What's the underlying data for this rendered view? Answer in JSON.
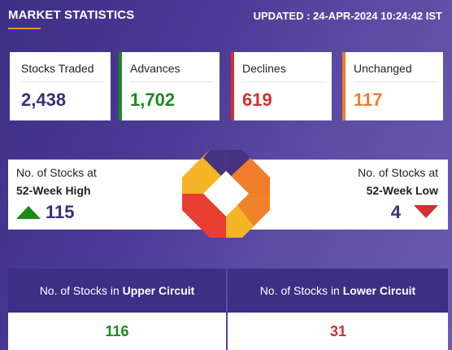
{
  "header": {
    "title": "MARKET STATISTICS",
    "updated": "UPDATED : 24-APR-2024 10:24:42 IST"
  },
  "stats": [
    {
      "label": "Stocks Traded",
      "value": "2,438",
      "color": "#3a2e7a",
      "border": "#ffffff"
    },
    {
      "label": "Advances",
      "value": "1,702",
      "color": "#1b8a1b",
      "border": "#1b8a1b"
    },
    {
      "label": "Declines",
      "value": "619",
      "color": "#d32f2f",
      "border": "#d32f2f"
    },
    {
      "label": "Unchanged",
      "value": "117",
      "color": "#ef7d2b",
      "border": "#ef7d2b"
    }
  ],
  "week52": {
    "high": {
      "line1": "No. of Stocks at",
      "line2": "52-Week High",
      "value": "115",
      "icon": "arrow-up-icon",
      "color": "#1b8a1b"
    },
    "low": {
      "line1": "No. of Stocks at",
      "line2": "52-Week Low",
      "value": "4",
      "icon": "arrow-down-icon",
      "color": "#d32f2f"
    }
  },
  "circuit": {
    "upper": {
      "prefix": "No. of Stocks in ",
      "strong": "Upper Circuit",
      "value": "116",
      "color": "#1b8a1b"
    },
    "lower": {
      "prefix": "No. of Stocks in ",
      "strong": "Lower Circuit",
      "value": "31",
      "color": "#d32f2f"
    }
  },
  "logo": {
    "icon": "octagon-logo-icon",
    "colors": [
      "#e83e31",
      "#f4b526",
      "#ef7d2b",
      "#3d2e86"
    ]
  }
}
